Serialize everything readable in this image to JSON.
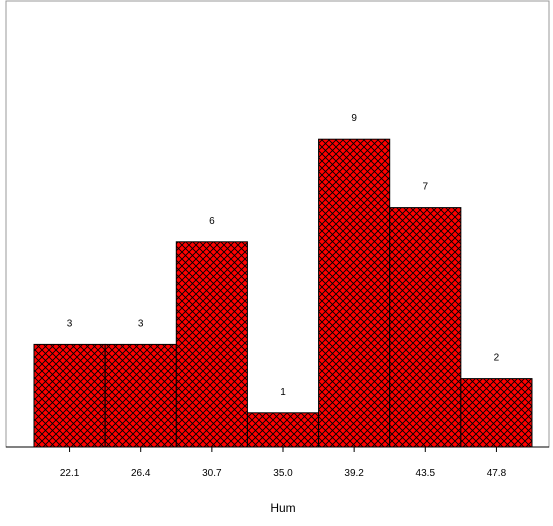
{
  "chart_data": {
    "type": "bar",
    "title": "",
    "xlabel": "Hum",
    "ylabel": "",
    "categories": [
      "22.1",
      "26.4",
      "30.7",
      "35.0",
      "39.2",
      "43.5",
      "47.8"
    ],
    "values": [
      3,
      3,
      6,
      1,
      9,
      7,
      2
    ],
    "data_labels": [
      "3",
      "3",
      "6",
      "1",
      "9",
      "7",
      "2"
    ],
    "ylim": [
      0,
      10
    ],
    "grid": false,
    "legend": "none",
    "colors": {
      "bar_fill": "#ff0000",
      "bar_hatch": "#000000",
      "bar_border": "#000000",
      "axis": "#000000",
      "frame": "#999999"
    },
    "pattern": "crosshatch"
  }
}
